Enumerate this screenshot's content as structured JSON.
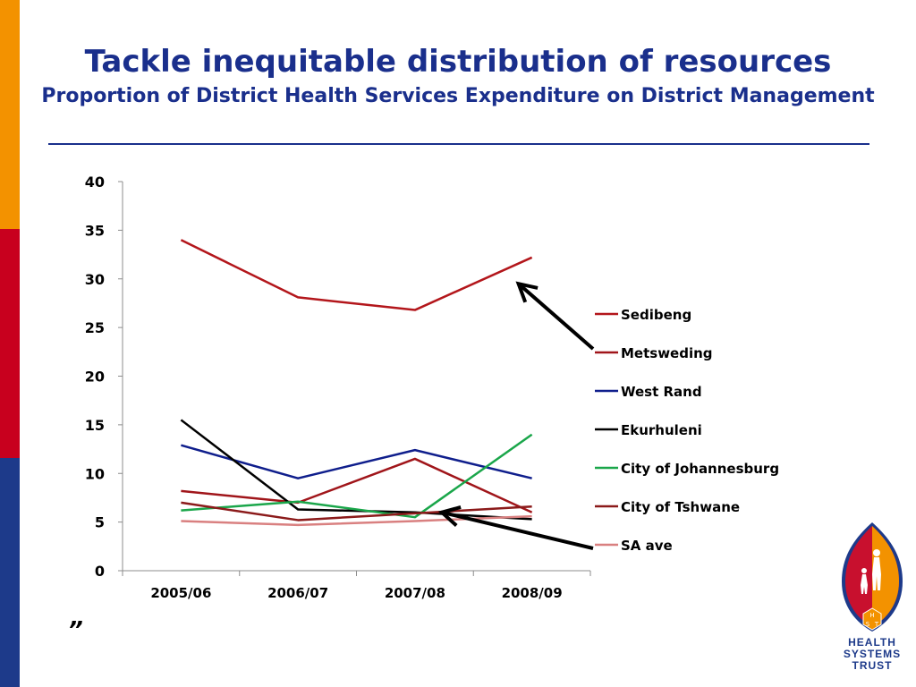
{
  "slide": {
    "title": "Tackle inequitable distribution of resources",
    "subtitle": "Proportion of District Health Services Expenditure on District Management",
    "footnote_mark": "”"
  },
  "logo": {
    "lines": [
      "HEALTH",
      "SYSTEMS",
      "TRUST"
    ],
    "initials": [
      "H",
      "S",
      "T"
    ],
    "colors": {
      "orange": "#f39200",
      "red": "#c8102e",
      "blue": "#1d3a8a"
    }
  },
  "chart_data": {
    "type": "line",
    "categories": [
      "2005/06",
      "2006/07",
      "2007/08",
      "2008/09"
    ],
    "ylim": [
      0,
      40
    ],
    "yticks": [
      0,
      5,
      10,
      15,
      20,
      25,
      30,
      35,
      40
    ],
    "grid": false,
    "legend_position": "right",
    "series": [
      {
        "name": "Sedibeng",
        "color": "#b3161b",
        "values": [
          34.0,
          28.1,
          26.8,
          32.2
        ]
      },
      {
        "name": "Metsweding",
        "color": "#a0151a",
        "values": [
          8.2,
          7.0,
          11.5,
          6.0
        ]
      },
      {
        "name": "West Rand",
        "color": "#0f1e8c",
        "values": [
          12.9,
          9.5,
          12.4,
          9.5
        ]
      },
      {
        "name": "Ekurhuleni",
        "color": "#000000",
        "values": [
          15.5,
          6.3,
          6.0,
          5.3
        ]
      },
      {
        "name": "City of Johannesburg",
        "color": "#1aa64a",
        "values": [
          6.2,
          7.1,
          5.5,
          14.0
        ]
      },
      {
        "name": "City of Tshwane",
        "color": "#8b1a1a",
        "values": [
          7.0,
          5.2,
          5.9,
          6.6
        ]
      },
      {
        "name": "SA ave",
        "color": "#d98080",
        "values": [
          5.1,
          4.7,
          5.1,
          5.6
        ]
      }
    ],
    "annotations": [
      {
        "type": "arrow",
        "from_legend": "Metsweding",
        "points_to": {
          "category": "2008/09",
          "value": 29.5
        }
      },
      {
        "type": "arrow",
        "from_legend": "SA ave",
        "points_to": {
          "category": "2007/08",
          "value": 6.0
        }
      }
    ]
  }
}
